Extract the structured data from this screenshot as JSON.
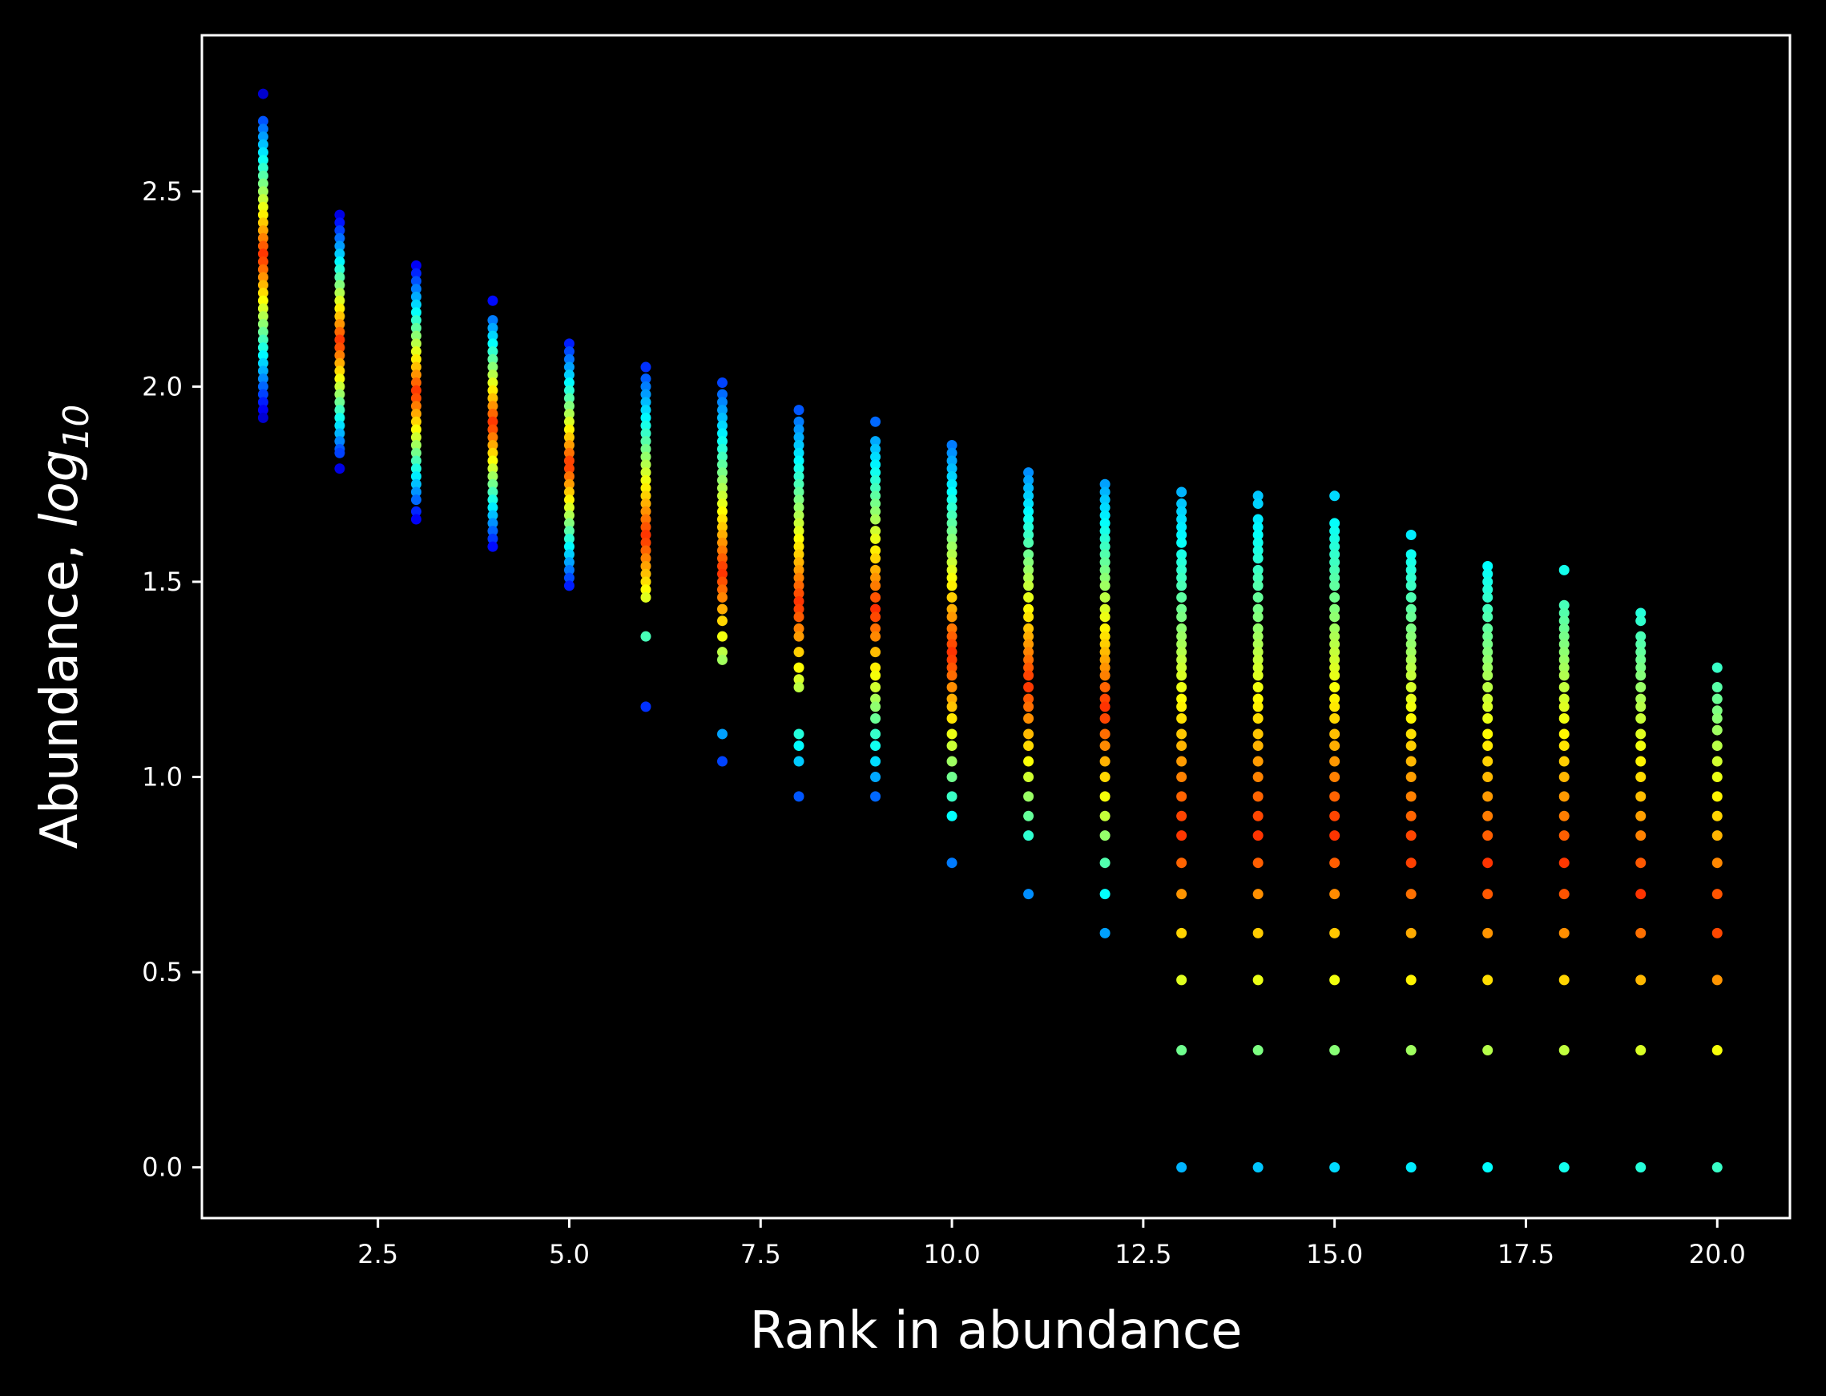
{
  "chart_data": {
    "type": "scatter",
    "xlabel": "Rank in abundance",
    "ylabel": "Abundance, log",
    "ylabel_subscript": "10",
    "xlim": [
      0.2,
      20.95
    ],
    "ylim": [
      -0.13,
      2.9
    ],
    "xticks": [
      2.5,
      5.0,
      7.5,
      10.0,
      12.5,
      15.0,
      17.5,
      20.0
    ],
    "xtick_labels": [
      "2.5",
      "5.0",
      "7.5",
      "10.0",
      "12.5",
      "15.0",
      "17.5",
      "20.0"
    ],
    "yticks": [
      0.0,
      0.5,
      1.0,
      1.5,
      2.0,
      2.5
    ],
    "ytick_labels": [
      "0.0",
      "0.5",
      "1.0",
      "1.5",
      "2.0",
      "2.5"
    ],
    "grid": false,
    "legend": "none",
    "colormap": "jet",
    "background_color": "#000000",
    "axes_color": "#ffffff",
    "series": [
      {
        "values_by_rank": [
          {
            "x": 1,
            "y": [
              2.75,
              2.68,
              2.66,
              2.64,
              2.62,
              2.6,
              2.58,
              2.56,
              2.54,
              2.52,
              2.5,
              2.48,
              2.46,
              2.44,
              2.42,
              2.4,
              2.38,
              2.36,
              2.34,
              2.32,
              2.3,
              2.28,
              2.26,
              2.24,
              2.22,
              2.2,
              2.18,
              2.16,
              2.14,
              2.12,
              2.1,
              2.08,
              2.06,
              2.04,
              2.02,
              2.0,
              1.98,
              1.96,
              1.94,
              1.92
            ]
          },
          {
            "x": 2,
            "y": [
              2.44,
              2.42,
              2.4,
              2.38,
              2.36,
              2.34,
              2.32,
              2.3,
              2.28,
              2.26,
              2.24,
              2.22,
              2.2,
              2.18,
              2.16,
              2.14,
              2.12,
              2.1,
              2.08,
              2.06,
              2.04,
              2.02,
              2.0,
              1.98,
              1.96,
              1.94,
              1.92,
              1.9,
              1.88,
              1.86,
              1.84,
              1.83,
              1.79
            ]
          },
          {
            "x": 3,
            "y": [
              2.31,
              2.29,
              2.27,
              2.25,
              2.23,
              2.21,
              2.19,
              2.17,
              2.15,
              2.13,
              2.11,
              2.09,
              2.07,
              2.05,
              2.03,
              2.01,
              1.99,
              1.97,
              1.95,
              1.93,
              1.91,
              1.89,
              1.87,
              1.85,
              1.83,
              1.81,
              1.79,
              1.77,
              1.75,
              1.73,
              1.71,
              1.68,
              1.66
            ]
          },
          {
            "x": 4,
            "y": [
              2.22,
              2.17,
              2.15,
              2.13,
              2.11,
              2.09,
              2.07,
              2.05,
              2.03,
              2.01,
              1.99,
              1.97,
              1.95,
              1.93,
              1.91,
              1.89,
              1.87,
              1.85,
              1.83,
              1.81,
              1.79,
              1.77,
              1.75,
              1.73,
              1.71,
              1.69,
              1.67,
              1.65,
              1.63,
              1.61,
              1.59
            ]
          },
          {
            "x": 5,
            "y": [
              2.11,
              2.09,
              2.07,
              2.05,
              2.03,
              2.01,
              1.99,
              1.97,
              1.95,
              1.93,
              1.91,
              1.89,
              1.87,
              1.85,
              1.83,
              1.81,
              1.79,
              1.77,
              1.75,
              1.73,
              1.71,
              1.69,
              1.67,
              1.65,
              1.63,
              1.61,
              1.59,
              1.57,
              1.55,
              1.53,
              1.51,
              1.49
            ]
          },
          {
            "x": 6,
            "y": [
              2.05,
              2.02,
              2.0,
              1.98,
              1.96,
              1.94,
              1.92,
              1.9,
              1.88,
              1.86,
              1.84,
              1.82,
              1.8,
              1.78,
              1.76,
              1.74,
              1.72,
              1.7,
              1.68,
              1.66,
              1.64,
              1.62,
              1.6,
              1.58,
              1.56,
              1.54,
              1.52,
              1.5,
              1.48,
              1.46,
              1.36,
              1.18
            ]
          },
          {
            "x": 7,
            "y": [
              2.01,
              1.98,
              1.96,
              1.94,
              1.92,
              1.9,
              1.88,
              1.86,
              1.84,
              1.82,
              1.8,
              1.78,
              1.76,
              1.74,
              1.72,
              1.7,
              1.68,
              1.66,
              1.64,
              1.62,
              1.6,
              1.58,
              1.56,
              1.54,
              1.52,
              1.5,
              1.48,
              1.46,
              1.43,
              1.4,
              1.36,
              1.32,
              1.3,
              1.11,
              1.04
            ]
          },
          {
            "x": 8,
            "y": [
              1.94,
              1.91,
              1.89,
              1.87,
              1.85,
              1.83,
              1.81,
              1.79,
              1.77,
              1.75,
              1.73,
              1.71,
              1.69,
              1.67,
              1.65,
              1.63,
              1.61,
              1.59,
              1.57,
              1.55,
              1.53,
              1.51,
              1.49,
              1.47,
              1.45,
              1.43,
              1.41,
              1.38,
              1.36,
              1.32,
              1.28,
              1.25,
              1.23,
              1.11,
              1.08,
              1.04,
              0.95
            ]
          },
          {
            "x": 9,
            "y": [
              1.91,
              1.86,
              1.84,
              1.82,
              1.8,
              1.78,
              1.76,
              1.74,
              1.72,
              1.7,
              1.68,
              1.66,
              1.63,
              1.61,
              1.58,
              1.56,
              1.53,
              1.51,
              1.49,
              1.46,
              1.43,
              1.41,
              1.38,
              1.36,
              1.32,
              1.28,
              1.26,
              1.23,
              1.2,
              1.18,
              1.15,
              1.11,
              1.08,
              1.04,
              1.0,
              0.95
            ]
          },
          {
            "x": 10,
            "y": [
              1.85,
              1.83,
              1.81,
              1.79,
              1.77,
              1.75,
              1.73,
              1.71,
              1.69,
              1.67,
              1.65,
              1.63,
              1.61,
              1.59,
              1.57,
              1.55,
              1.53,
              1.51,
              1.49,
              1.46,
              1.43,
              1.41,
              1.38,
              1.36,
              1.34,
              1.32,
              1.3,
              1.28,
              1.26,
              1.23,
              1.2,
              1.18,
              1.15,
              1.11,
              1.08,
              1.04,
              1.0,
              0.95,
              0.9,
              0.78
            ]
          },
          {
            "x": 11,
            "y": [
              1.78,
              1.76,
              1.74,
              1.72,
              1.7,
              1.68,
              1.66,
              1.64,
              1.62,
              1.6,
              1.57,
              1.55,
              1.53,
              1.51,
              1.49,
              1.46,
              1.43,
              1.41,
              1.38,
              1.36,
              1.34,
              1.32,
              1.3,
              1.28,
              1.26,
              1.23,
              1.2,
              1.18,
              1.15,
              1.11,
              1.08,
              1.04,
              1.0,
              0.95,
              0.9,
              0.85,
              0.7
            ]
          },
          {
            "x": 12,
            "y": [
              1.75,
              1.73,
              1.71,
              1.69,
              1.67,
              1.65,
              1.63,
              1.61,
              1.59,
              1.57,
              1.55,
              1.53,
              1.51,
              1.49,
              1.46,
              1.43,
              1.41,
              1.38,
              1.36,
              1.34,
              1.32,
              1.3,
              1.28,
              1.26,
              1.23,
              1.2,
              1.18,
              1.15,
              1.11,
              1.08,
              1.04,
              1.0,
              0.95,
              0.9,
              0.85,
              0.78,
              0.7,
              0.6
            ]
          },
          {
            "x": 13,
            "y": [
              1.73,
              1.7,
              1.68,
              1.66,
              1.64,
              1.62,
              1.6,
              1.57,
              1.55,
              1.53,
              1.51,
              1.49,
              1.46,
              1.43,
              1.41,
              1.38,
              1.36,
              1.34,
              1.32,
              1.3,
              1.28,
              1.26,
              1.23,
              1.2,
              1.18,
              1.15,
              1.11,
              1.08,
              1.04,
              1.0,
              0.95,
              0.9,
              0.85,
              0.78,
              0.7,
              0.6,
              0.48,
              0.3,
              0.0
            ]
          },
          {
            "x": 14,
            "y": [
              1.72,
              1.7,
              1.66,
              1.64,
              1.62,
              1.6,
              1.58,
              1.56,
              1.53,
              1.51,
              1.49,
              1.46,
              1.43,
              1.41,
              1.38,
              1.36,
              1.34,
              1.32,
              1.3,
              1.28,
              1.26,
              1.23,
              1.2,
              1.18,
              1.15,
              1.11,
              1.08,
              1.04,
              1.0,
              0.95,
              0.9,
              0.85,
              0.78,
              0.7,
              0.6,
              0.48,
              0.3,
              0.0
            ]
          },
          {
            "x": 15,
            "y": [
              1.72,
              1.65,
              1.63,
              1.61,
              1.59,
              1.57,
              1.55,
              1.53,
              1.51,
              1.49,
              1.46,
              1.43,
              1.41,
              1.38,
              1.36,
              1.34,
              1.32,
              1.3,
              1.28,
              1.26,
              1.23,
              1.2,
              1.18,
              1.15,
              1.11,
              1.08,
              1.04,
              1.0,
              0.95,
              0.9,
              0.85,
              0.78,
              0.7,
              0.6,
              0.48,
              0.3,
              0.0
            ]
          },
          {
            "x": 16,
            "y": [
              1.62,
              1.57,
              1.55,
              1.53,
              1.51,
              1.49,
              1.46,
              1.43,
              1.41,
              1.38,
              1.36,
              1.34,
              1.32,
              1.3,
              1.28,
              1.26,
              1.23,
              1.2,
              1.18,
              1.15,
              1.11,
              1.08,
              1.04,
              1.0,
              0.95,
              0.9,
              0.85,
              0.78,
              0.7,
              0.6,
              0.48,
              0.3,
              0.0
            ]
          },
          {
            "x": 17,
            "y": [
              1.54,
              1.52,
              1.5,
              1.48,
              1.46,
              1.43,
              1.41,
              1.38,
              1.36,
              1.34,
              1.32,
              1.3,
              1.28,
              1.26,
              1.23,
              1.2,
              1.18,
              1.15,
              1.11,
              1.08,
              1.04,
              1.0,
              0.95,
              0.9,
              0.85,
              0.78,
              0.7,
              0.6,
              0.48,
              0.3,
              0.0
            ]
          },
          {
            "x": 18,
            "y": [
              1.53,
              1.44,
              1.42,
              1.4,
              1.38,
              1.36,
              1.34,
              1.32,
              1.3,
              1.28,
              1.26,
              1.23,
              1.2,
              1.18,
              1.15,
              1.11,
              1.08,
              1.04,
              1.0,
              0.95,
              0.9,
              0.85,
              0.78,
              0.7,
              0.6,
              0.48,
              0.3,
              0.0
            ]
          },
          {
            "x": 19,
            "y": [
              1.42,
              1.4,
              1.36,
              1.34,
              1.32,
              1.3,
              1.28,
              1.26,
              1.23,
              1.2,
              1.18,
              1.15,
              1.11,
              1.08,
              1.04,
              1.0,
              0.95,
              0.9,
              0.85,
              0.78,
              0.7,
              0.6,
              0.48,
              0.3,
              0.0
            ]
          },
          {
            "x": 20,
            "y": [
              1.28,
              1.23,
              1.2,
              1.17,
              1.15,
              1.12,
              1.08,
              1.04,
              1.0,
              0.95,
              0.9,
              0.85,
              0.78,
              0.7,
              0.6,
              0.48,
              0.3,
              0.0
            ]
          }
        ]
      }
    ]
  }
}
